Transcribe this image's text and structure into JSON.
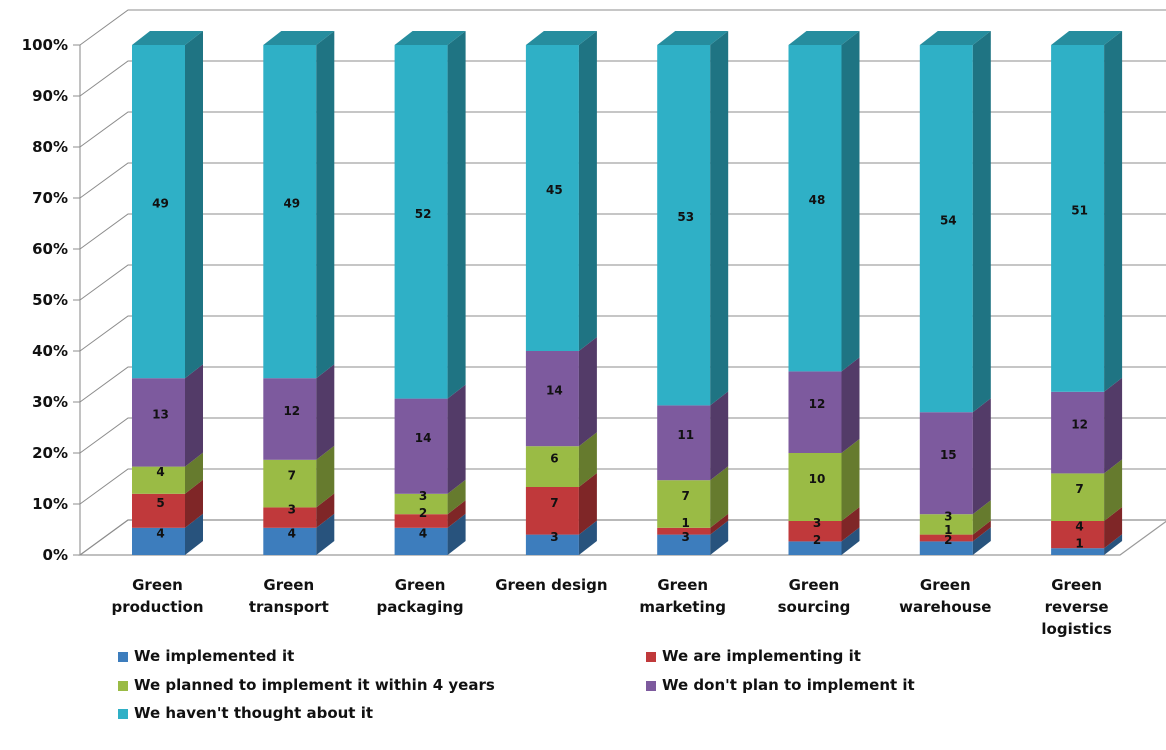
{
  "chart_data": {
    "type": "bar",
    "stacked": true,
    "normalized": true,
    "three_d": true,
    "categories": [
      [
        "Green",
        "production"
      ],
      [
        "Green",
        "transport"
      ],
      [
        "Green",
        "packaging"
      ],
      [
        "Green design"
      ],
      [
        "Green",
        "marketing"
      ],
      [
        "Green",
        "sourcing"
      ],
      [
        "Green",
        "warehouse"
      ],
      [
        "Green",
        "reverse",
        "logistics"
      ]
    ],
    "series": [
      {
        "name": "We implemented it",
        "color": "#3d7dbd",
        "values": [
          4,
          4,
          4,
          3,
          3,
          2,
          2,
          1
        ]
      },
      {
        "name": "We are implementing it",
        "color": "#c0393b",
        "values": [
          5,
          3,
          2,
          7,
          1,
          3,
          1,
          4
        ]
      },
      {
        "name": "We planned to implement it within 4 years",
        "color": "#9abb45",
        "values": [
          4,
          7,
          3,
          6,
          7,
          10,
          3,
          7
        ]
      },
      {
        "name": "We don't plan to implement it",
        "color": "#7d5a9e",
        "values": [
          13,
          12,
          14,
          14,
          11,
          12,
          15,
          12
        ]
      },
      {
        "name": "We haven't thought about it",
        "color": "#2fb0c6",
        "values": [
          49,
          49,
          52,
          45,
          53,
          48,
          54,
          51
        ]
      }
    ],
    "y_ticks": [
      "0%",
      "10%",
      "20%",
      "30%",
      "40%",
      "50%",
      "60%",
      "70%",
      "80%",
      "90%",
      "100%"
    ],
    "ylim": [
      0,
      100
    ],
    "grid": true,
    "legend_position": "bottom"
  }
}
